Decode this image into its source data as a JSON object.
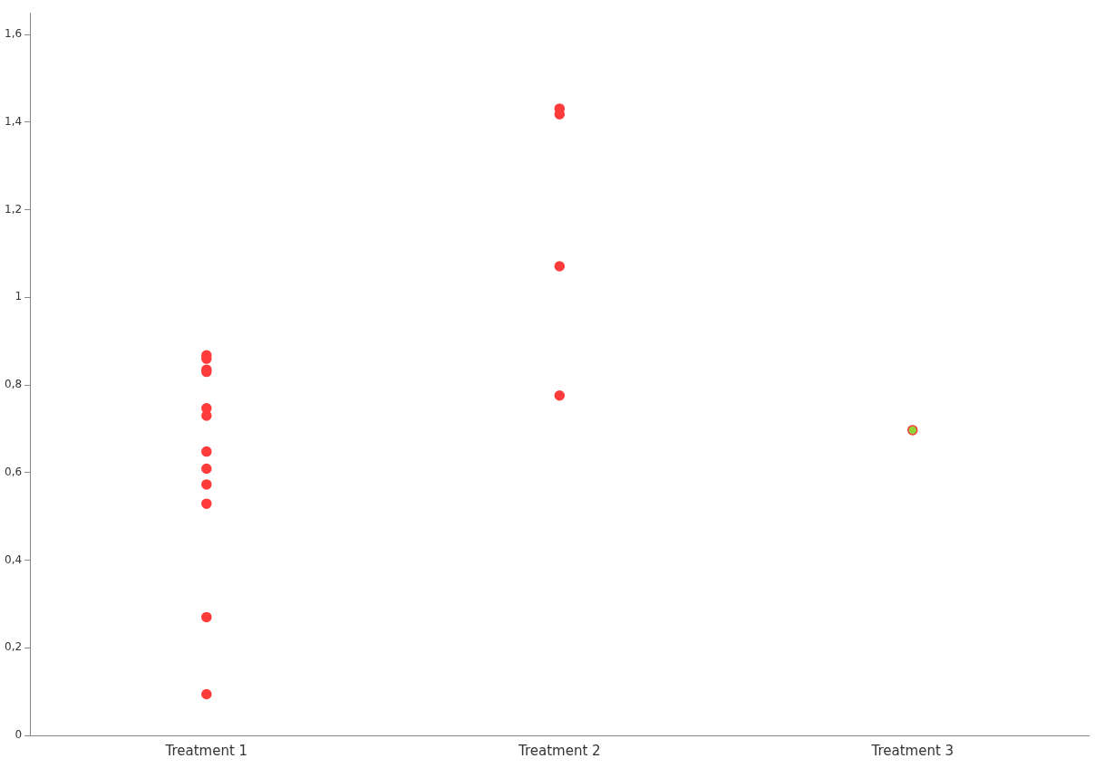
{
  "chart_data": {
    "type": "scatter",
    "categories": [
      "Treatment 1",
      "Treatment 2",
      "Treatment 3"
    ],
    "series": [
      {
        "color": "#ff3b3b",
        "x": [
          "Treatment 1",
          "Treatment 1",
          "Treatment 1",
          "Treatment 1",
          "Treatment 1",
          "Treatment 1",
          "Treatment 1",
          "Treatment 1",
          "Treatment 1",
          "Treatment 1",
          "Treatment 1",
          "Treatment 1",
          "Treatment 2",
          "Treatment 2",
          "Treatment 2",
          "Treatment 2",
          "Treatment 3"
        ],
        "values": [
          0.868,
          0.86,
          0.835,
          0.83,
          0.747,
          0.73,
          0.648,
          0.609,
          0.573,
          0.529,
          0.27,
          0.094,
          1.431,
          1.418,
          1.071,
          0.776,
          0.697
        ],
        "colors": [
          "#ff3b3b",
          "#ff3b3b",
          "#ff3b3b",
          "#ff3b3b",
          "#ff3b3b",
          "#ff3b3b",
          "#ff3b3b",
          "#ff3b3b",
          "#ff3b3b",
          "#ff3b3b",
          "#ff3b3b",
          "#ff3b3b",
          "#ff3b3b",
          "#ff3b3b",
          "#ff3b3b",
          "#ff3b3b",
          "#8fd43a"
        ]
      }
    ],
    "ylim": [
      0,
      1.65
    ],
    "yticks": [
      0,
      {
        "value": 0.2,
        "label": "0,2"
      },
      {
        "value": 0.4,
        "label": "0,4"
      },
      {
        "value": 0.6,
        "label": "0,6"
      },
      {
        "value": 0.8,
        "label": "0,8"
      },
      1,
      {
        "value": 1.2,
        "label": "1,2"
      },
      {
        "value": 1.4,
        "label": "1,4"
      },
      {
        "value": 1.6,
        "label": "1,6"
      }
    ],
    "grid": false,
    "legend": false,
    "marker": "circle"
  }
}
